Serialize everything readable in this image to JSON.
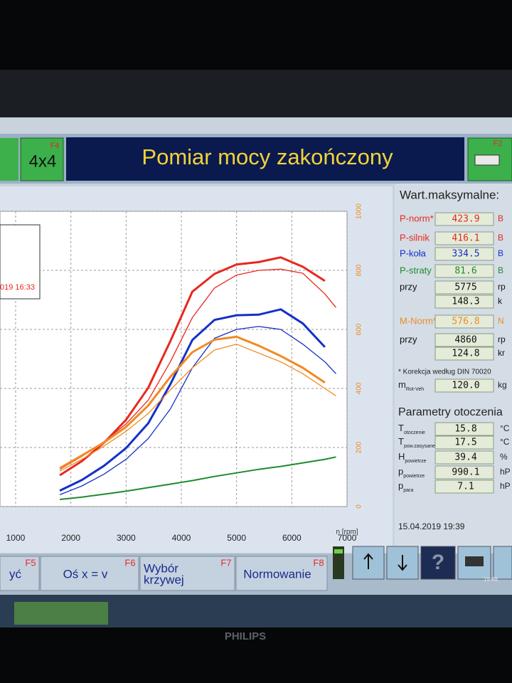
{
  "header": {
    "left_button": "4x4",
    "left_key": "F4",
    "title": "Pomiar mocy zakończony",
    "right_key": "F2"
  },
  "legend_box": {
    "text": "019 16:33"
  },
  "chart_data": {
    "type": "line",
    "x_label": "n [rpm]",
    "x": [
      1800,
      2200,
      2600,
      3000,
      3400,
      3800,
      4200,
      4600,
      5000,
      5400,
      5800,
      6200,
      6600,
      6800
    ],
    "xlim": [
      717,
      7000
    ],
    "xticks": [
      1000,
      2000,
      3000,
      4000,
      5000,
      6000,
      7000
    ],
    "ylim": [
      0,
      500
    ],
    "y2lim": [
      0,
      1000
    ],
    "y2ticks": [
      0,
      200,
      400,
      600,
      800,
      1000
    ],
    "y2_color": "#f08a24",
    "grid": true,
    "series": [
      {
        "color": "#e8281e",
        "width": 3,
        "values": [
          53,
          77,
          108,
          147,
          201,
          280,
          364,
          394,
          410,
          414,
          422,
          406,
          382,
          null
        ]
      },
      {
        "color": "#e8281e",
        "width": 1.3,
        "values": [
          63,
          85,
          110,
          140,
          180,
          245,
          320,
          370,
          392,
          400,
          402,
          395,
          360,
          337
        ]
      },
      {
        "color": "#1530c8",
        "width": 3,
        "values": [
          27,
          45,
          69,
          99,
          141,
          207,
          282,
          316,
          324,
          325,
          334,
          310,
          270,
          null
        ]
      },
      {
        "color": "#1530c8",
        "width": 1.3,
        "values": [
          20,
          35,
          55,
          80,
          115,
          165,
          235,
          285,
          300,
          305,
          300,
          275,
          245,
          225
        ]
      },
      {
        "color": "#f08a24",
        "width": 3,
        "axis": "y2",
        "values": [
          130,
          173,
          217,
          270,
          342,
          439,
          523,
          565,
          575,
          545,
          510,
          470,
          420,
          null
        ]
      },
      {
        "color": "#f08a24",
        "width": 1.3,
        "axis": "y2",
        "values": [
          120,
          160,
          205,
          255,
          315,
          395,
          470,
          530,
          550,
          520,
          490,
          450,
          400,
          375
        ]
      },
      {
        "color": "#1e8a2e",
        "width": 2,
        "values": [
          12,
          16,
          21,
          26,
          32,
          38,
          44,
          51,
          57,
          63,
          68,
          74,
          80,
          84
        ]
      }
    ]
  },
  "max_values": {
    "title": "Wart.maksymalne:",
    "rows": [
      {
        "label": "P-norm*",
        "value": "423.9",
        "unit": "B",
        "color": "#e8281e"
      },
      {
        "label": "P-silnik",
        "value": "416.1",
        "unit": "B",
        "color": "#e8281e"
      },
      {
        "label": "P-koła",
        "value": "334.5",
        "unit": "B",
        "color": "#1530c8"
      },
      {
        "label": "P-straty",
        "value": "81.6",
        "unit": "B",
        "color": "#1e8a2e"
      },
      {
        "label": "przy",
        "value": "5775",
        "unit": "rp",
        "color": "#111111"
      },
      {
        "label": "",
        "value": "148.3",
        "unit": "k",
        "color": "#111111"
      },
      {
        "label": "M-Norm*",
        "value": "576.8",
        "unit": "N",
        "color": "#f08a24"
      },
      {
        "label": "przy",
        "value": "4860",
        "unit": "rp",
        "color": "#111111"
      },
      {
        "label": "",
        "value": "124.8",
        "unit": "kr",
        "color": "#111111"
      }
    ],
    "note": "* Korekcja według DIN 70020",
    "mass": {
      "symbol": "m",
      "sub": "Rot-Veh",
      "value": "120.0",
      "unit": "kg"
    }
  },
  "ambient": {
    "title": "Parametry otoczenia",
    "rows": [
      {
        "symbol": "T",
        "sub": "otoczenie",
        "value": "15.8",
        "unit": "°C"
      },
      {
        "symbol": "T",
        "sub": "pow.zasysane",
        "value": "17.5",
        "unit": "°C"
      },
      {
        "symbol": "H",
        "sub": "powietrze",
        "value": "39.4",
        "unit": "%"
      },
      {
        "symbol": "p",
        "sub": "powietrze",
        "value": "990.1",
        "unit": "hP"
      },
      {
        "symbol": "p",
        "sub": "para",
        "value": "7.1",
        "unit": "hP"
      }
    ],
    "date": "15.04.2019  19:39"
  },
  "buttons": [
    {
      "key": "F5",
      "lines": [
        "yć"
      ]
    },
    {
      "key": "F6",
      "lines": [
        "Oś x = v"
      ]
    },
    {
      "key": "F7",
      "lines": [
        "Wybór",
        "krzywej"
      ]
    },
    {
      "key": "F8",
      "lines": [
        "Normowanie"
      ]
    }
  ],
  "taskbar": {
    "clock": "19:48"
  },
  "brand": "PHILIPS"
}
